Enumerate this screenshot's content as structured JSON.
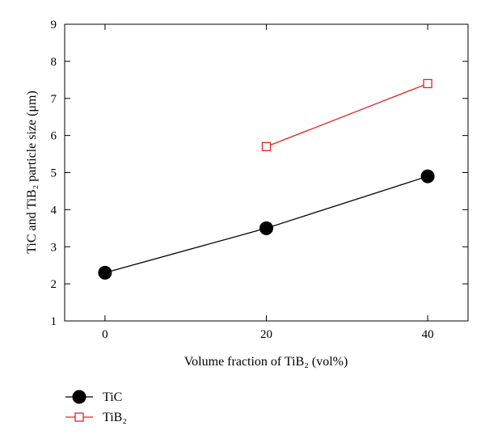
{
  "chart_data": {
    "type": "line",
    "xlabel": "Volume fraction of TiB₂ (vol%)",
    "ylabel": "TiC and TiB₂ particle size (μm)",
    "xlim": [
      -5,
      45
    ],
    "ylim": [
      1,
      9
    ],
    "x_ticks": [
      0,
      20,
      40
    ],
    "y_ticks": [
      1,
      2,
      3,
      4,
      5,
      6,
      7,
      8,
      9
    ],
    "grid": false,
    "legend_position": "bottom-left",
    "series": [
      {
        "name": "TiC",
        "color": "#000000",
        "marker": "filled-circle",
        "x": [
          0,
          20,
          40
        ],
        "y": [
          2.3,
          3.5,
          4.9
        ]
      },
      {
        "name": "TiB₂",
        "color": "#e8231e",
        "marker": "open-square",
        "x": [
          20,
          40
        ],
        "y": [
          5.7,
          7.4
        ]
      }
    ]
  }
}
